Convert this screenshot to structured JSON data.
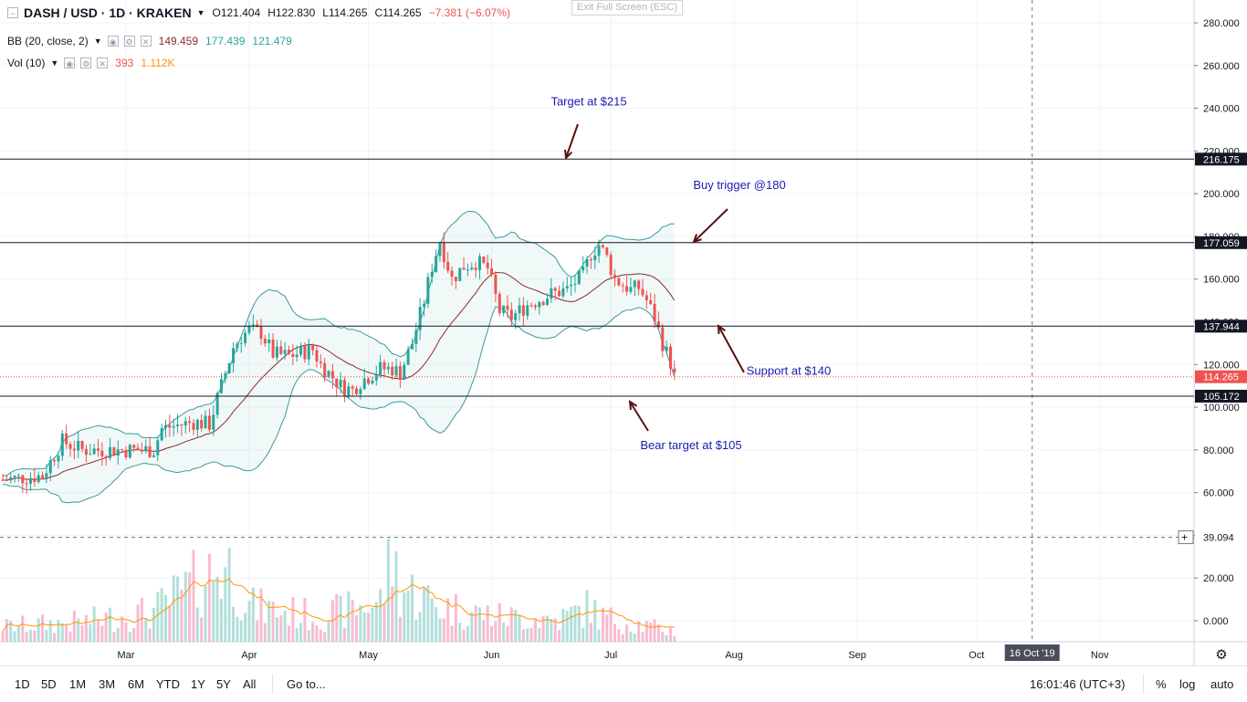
{
  "header": {
    "symbol": "DASH / USD · 1D · KRAKEN",
    "open": "O121.404",
    "high": "H122.830",
    "low": "L114.265",
    "close": "C114.265",
    "change": "−7.381 (−6.07%)",
    "exit_fullscreen": "Exit Full Screen (ESC)"
  },
  "indicators": {
    "bb": {
      "name": "BB (20, close, 2)",
      "v1": "149.459",
      "v2": "177.439",
      "v3": "121.479"
    },
    "vol": {
      "name": "Vol (10)",
      "v1": "393",
      "v2": "1.112K"
    }
  },
  "bottom": {
    "timeframes": [
      "1D",
      "5D",
      "1M",
      "3M",
      "6M",
      "YTD",
      "1Y",
      "5Y",
      "All"
    ],
    "goto": "Go to...",
    "clock": "16:01:46 (UTC+3)",
    "percent": "%",
    "log": "log",
    "auto": "auto"
  },
  "colors": {
    "up": "#26a69a",
    "down": "#ef5350",
    "bb_band": "#3b9a9a",
    "bb_basis": "#8b2a2a",
    "annotation": "#1a1ab0",
    "arrow": "#5a1010",
    "price_badge": "#ef5350",
    "level_badge": "#131722",
    "vol_ma": "#ff9800"
  },
  "chart_data": {
    "type": "candlestick",
    "ylim": [
      -10,
      290
    ],
    "y_ticks": [
      "280.000",
      "260.000",
      "240.000",
      "220.000",
      "200.000",
      "180.000",
      "160.000",
      "140.000",
      "120.000",
      "100.000",
      "80.000",
      "60.000",
      "40.000",
      "20.000",
      "0.000"
    ],
    "x_labels": [
      {
        "label": "Mar",
        "day": 31
      },
      {
        "label": "Apr",
        "day": 62
      },
      {
        "label": "May",
        "day": 92
      },
      {
        "label": "Jun",
        "day": 123
      },
      {
        "label": "Jul",
        "day": 153
      },
      {
        "label": "Aug",
        "day": 184
      },
      {
        "label": "Sep",
        "day": 215
      },
      {
        "label": "Oct",
        "day": 245
      },
      {
        "label": "Nov",
        "day": 276
      }
    ],
    "cursor_date": {
      "label": "16 Oct '19",
      "day": 259
    },
    "cursor_value": "39.094",
    "levels": [
      {
        "value": 216.175,
        "label": "216.175"
      },
      {
        "value": 177.059,
        "label": "177.059"
      },
      {
        "value": 137.944,
        "label": "137.944"
      },
      {
        "value": 105.172,
        "label": "105.172"
      }
    ],
    "last_price": {
      "value": 114.265,
      "label": "114.265"
    },
    "annotations": [
      {
        "text": "Target at $215",
        "price": 243
      },
      {
        "text": "Buy trigger @180",
        "price": 204
      },
      {
        "text": "Support at $140",
        "price": 117
      },
      {
        "text": "Bear target at $105",
        "price": 82
      }
    ],
    "price_path": [
      [
        0,
        66
      ],
      [
        10,
        68
      ],
      [
        15,
        84
      ],
      [
        20,
        80
      ],
      [
        30,
        80
      ],
      [
        38,
        80
      ],
      [
        40,
        90
      ],
      [
        48,
        93
      ],
      [
        52,
        92
      ],
      [
        55,
        110
      ],
      [
        58,
        128
      ],
      [
        60,
        133
      ],
      [
        62,
        136
      ],
      [
        65,
        135
      ],
      [
        68,
        125
      ],
      [
        72,
        124
      ],
      [
        78,
        127
      ],
      [
        80,
        120
      ],
      [
        85,
        110
      ],
      [
        88,
        108
      ],
      [
        90,
        112
      ],
      [
        95,
        118
      ],
      [
        98,
        118
      ],
      [
        100,
        116
      ],
      [
        103,
        130
      ],
      [
        106,
        150
      ],
      [
        108,
        166
      ],
      [
        110,
        178
      ],
      [
        113,
        160
      ],
      [
        116,
        166
      ],
      [
        119,
        168
      ],
      [
        122,
        165
      ],
      [
        125,
        145
      ],
      [
        128,
        142
      ],
      [
        132,
        148
      ],
      [
        138,
        153
      ],
      [
        142,
        155
      ],
      [
        146,
        162
      ],
      [
        148,
        172
      ],
      [
        150,
        176
      ],
      [
        152,
        170
      ],
      [
        154,
        160
      ],
      [
        158,
        155
      ],
      [
        160,
        156
      ],
      [
        162,
        150
      ],
      [
        164,
        142
      ],
      [
        166,
        130
      ],
      [
        168,
        121
      ],
      [
        169,
        114
      ]
    ],
    "volume_path": [
      [
        0,
        6
      ],
      [
        20,
        8
      ],
      [
        38,
        12
      ],
      [
        55,
        30
      ],
      [
        58,
        28
      ],
      [
        62,
        14
      ],
      [
        80,
        10
      ],
      [
        95,
        16
      ],
      [
        98,
        34
      ],
      [
        100,
        22
      ],
      [
        110,
        14
      ],
      [
        125,
        10
      ],
      [
        140,
        9
      ],
      [
        148,
        14
      ],
      [
        150,
        10
      ],
      [
        169,
        4
      ]
    ]
  }
}
